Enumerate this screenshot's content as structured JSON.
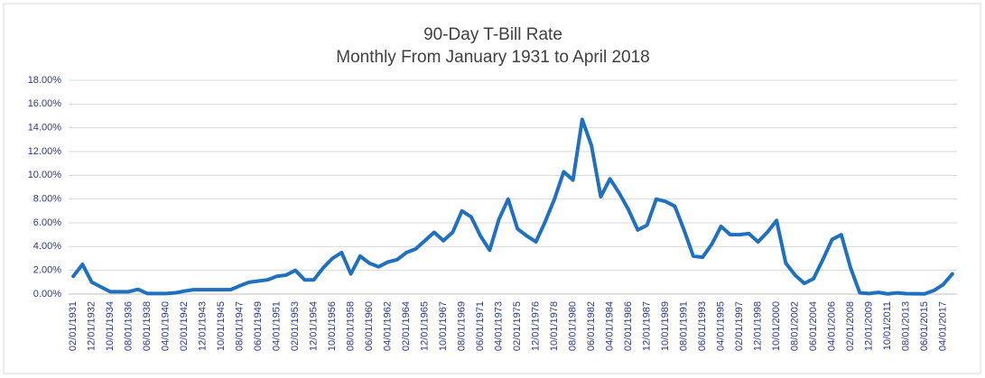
{
  "chart_data": {
    "type": "line",
    "title": "90-Day T-Bill Rate",
    "subtitle": "Monthly From January 1931 to April 2018",
    "categories": [
      "02/01/1931",
      null,
      "12/01/1932",
      null,
      "10/01/1934",
      null,
      "08/01/1936",
      null,
      "06/01/1938",
      null,
      "04/01/1940",
      null,
      "02/01/1942",
      null,
      "12/01/1943",
      null,
      "10/01/1945",
      null,
      "08/01/1947",
      null,
      "06/01/1949",
      null,
      "04/01/1951",
      null,
      "02/01/1953",
      null,
      "12/01/1954",
      null,
      "10/01/1956",
      null,
      "08/01/1958",
      null,
      "06/01/1960",
      null,
      "04/01/1962",
      null,
      "02/01/1964",
      null,
      "12/01/1965",
      null,
      "10/01/1967",
      null,
      "08/01/1969",
      null,
      "06/01/1971",
      null,
      "04/01/1973",
      null,
      "02/01/1975",
      null,
      "12/01/1976",
      null,
      "10/01/1978",
      null,
      "08/01/1980",
      null,
      "06/01/1982",
      null,
      "04/01/1984",
      null,
      "02/01/1986",
      null,
      "12/01/1987",
      null,
      "10/01/1989",
      null,
      "08/01/1991",
      null,
      "06/01/1993",
      null,
      "04/01/1995",
      null,
      "02/01/1997",
      null,
      "12/01/1998",
      null,
      "10/01/2000",
      null,
      "08/01/2002",
      null,
      "06/01/2004",
      null,
      "04/01/2006",
      null,
      "02/01/2008",
      null,
      "12/01/2009",
      null,
      "10/01/2011",
      null,
      "08/01/2013",
      null,
      "06/01/2015",
      null,
      "04/01/2017",
      null
    ],
    "series": [
      {
        "name": "90-Day T-Bill Rate",
        "color": "#1f70c1",
        "values": [
          1.5,
          2.5,
          1.0,
          0.6,
          0.2,
          0.2,
          0.2,
          0.4,
          0.05,
          0.05,
          0.05,
          0.1,
          0.25,
          0.37,
          0.37,
          0.37,
          0.37,
          0.37,
          0.7,
          1.0,
          1.1,
          1.2,
          1.5,
          1.6,
          2.0,
          1.2,
          1.2,
          2.2,
          3.0,
          3.5,
          1.7,
          3.2,
          2.6,
          2.3,
          2.7,
          2.9,
          3.5,
          3.8,
          4.5,
          5.2,
          4.5,
          5.2,
          7.0,
          6.5,
          4.9,
          3.7,
          6.3,
          8.0,
          5.5,
          4.9,
          4.4,
          6.1,
          8.0,
          10.3,
          9.6,
          14.7,
          12.5,
          8.2,
          9.7,
          8.5,
          7.1,
          5.4,
          5.8,
          8.0,
          7.8,
          7.4,
          5.4,
          3.2,
          3.1,
          4.2,
          5.7,
          5.0,
          5.0,
          5.1,
          4.4,
          5.2,
          6.2,
          2.6,
          1.6,
          0.9,
          1.3,
          2.9,
          4.6,
          5.0,
          2.2,
          0.1,
          0.05,
          0.14,
          0.02,
          0.1,
          0.04,
          0.03,
          0.02,
          0.3,
          0.8,
          1.7
        ]
      }
    ],
    "ylim": [
      0,
      18
    ],
    "yticks": [
      {
        "value": 0,
        "label": "0.00%"
      },
      {
        "value": 2,
        "label": "2.00%"
      },
      {
        "value": 4,
        "label": "4.00%"
      },
      {
        "value": 6,
        "label": "6.00%"
      },
      {
        "value": 8,
        "label": "8.00%"
      },
      {
        "value": 10,
        "label": "10.00%"
      },
      {
        "value": 12,
        "label": "12.00%"
      },
      {
        "value": 14,
        "label": "14.00%"
      },
      {
        "value": 16,
        "label": "16.00%"
      },
      {
        "value": 18,
        "label": "18.00%"
      }
    ],
    "grid": true
  }
}
